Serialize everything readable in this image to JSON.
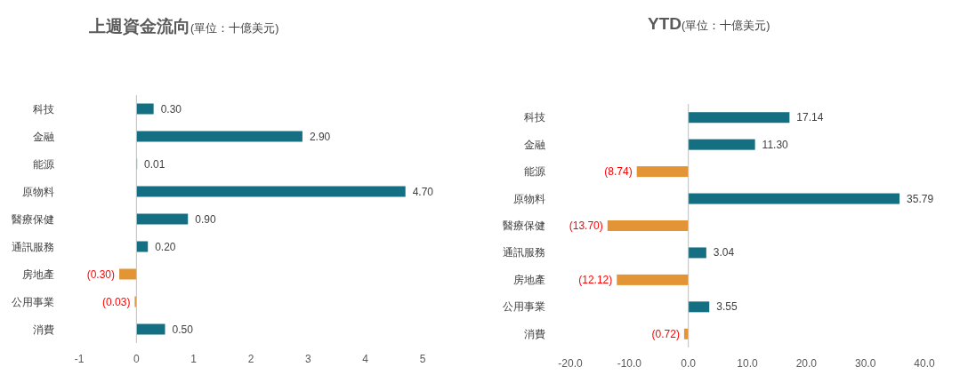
{
  "chart_data": [
    {
      "type": "bar",
      "orientation": "horizontal",
      "title": "上週資金流向",
      "subtitle": "(單位：十億美元)",
      "categories": [
        "科技",
        "金融",
        "能源",
        "原物料",
        "醫療保健",
        "通訊服務",
        "房地產",
        "公用事業",
        "消費"
      ],
      "values": [
        0.3,
        2.9,
        0.01,
        4.7,
        0.9,
        0.2,
        -0.3,
        -0.03,
        0.5
      ],
      "colors": [
        "#156f82",
        "#156f82",
        "#156f82",
        "#156f82",
        "#156f82",
        "#156f82",
        "#e39435",
        "#e39435",
        "#156f82"
      ],
      "value_labels": [
        "0.30",
        "2.90",
        "0.01",
        "4.70",
        "0.90",
        "0.20",
        "(0.30)",
        "(0.03)",
        "0.50"
      ],
      "xlim": [
        -1,
        5
      ],
      "xticks": [
        -1,
        0,
        1,
        2,
        3,
        4,
        5
      ]
    },
    {
      "type": "bar",
      "orientation": "horizontal",
      "title": "YTD",
      "subtitle": "(單位：十億美元)",
      "categories": [
        "科技",
        "金融",
        "能源",
        "原物料",
        "醫療保健",
        "通訊服務",
        "房地產",
        "公用事業",
        "消費"
      ],
      "values": [
        17.14,
        11.3,
        -8.74,
        35.79,
        -13.7,
        3.04,
        -12.12,
        3.55,
        -0.72
      ],
      "colors": [
        "#156f82",
        "#156f82",
        "#e39435",
        "#156f82",
        "#e39435",
        "#156f82",
        "#e39435",
        "#156f82",
        "#e39435"
      ],
      "value_labels": [
        "17.14",
        "11.30",
        "(8.74)",
        "35.79",
        "(13.70)",
        "3.04",
        "(12.12)",
        "3.55",
        "(0.72)"
      ],
      "xlim": [
        -20,
        40
      ],
      "xticks": [
        {
          "value": -20,
          "label": "-20.0"
        },
        {
          "value": -10,
          "label": "-10.0"
        },
        {
          "value": 0,
          "label": "0.0"
        },
        {
          "value": 10,
          "label": "10.0"
        },
        {
          "value": 20,
          "label": "20.0"
        },
        {
          "value": 30,
          "label": "30.0"
        },
        {
          "value": 40,
          "label": "40.0"
        }
      ]
    }
  ]
}
